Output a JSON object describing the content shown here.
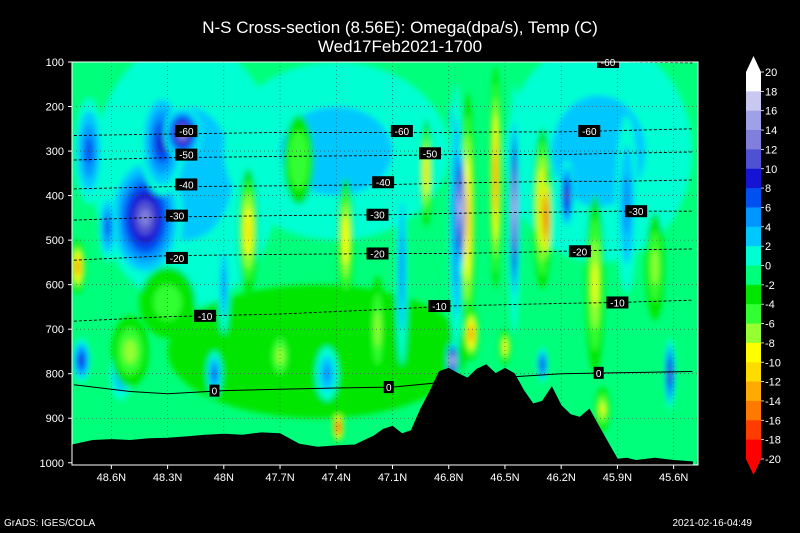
{
  "title_line1": "N-S Cross-section (8.56E): Omega(dpa/s), Temp (C)",
  "title_line2": "Wed17Feb2021-1700",
  "footer_left": "GrADS: IGES/COLA",
  "footer_right": "2021-02-16-04:49",
  "chart_data": {
    "type": "heatmap",
    "x_ticks": [
      "48.6N",
      "48.3N",
      "48N",
      "47.7N",
      "47.4N",
      "47.1N",
      "46.8N",
      "46.5N",
      "46.2N",
      "45.9N",
      "45.6N"
    ],
    "y_ticks": [
      100,
      200,
      300,
      400,
      500,
      600,
      700,
      800,
      900,
      1000
    ],
    "colorbar": {
      "labels": [
        20,
        18,
        16,
        14,
        12,
        10,
        8,
        6,
        4,
        2,
        0,
        -2,
        -4,
        -6,
        -8,
        -10,
        -12,
        -14,
        -16,
        -18,
        -20
      ],
      "colors": [
        "#ffffff",
        "#c8c8f0",
        "#a0a0e6",
        "#8080dc",
        "#5050d2",
        "#1414d2",
        "#0050f0",
        "#0096ff",
        "#00c8ff",
        "#00ffd2",
        "#00ff7a",
        "#00e600",
        "#32ff32",
        "#96ff32",
        "#ffff00",
        "#ffdc00",
        "#ffaa00",
        "#ff7800",
        "#ff3c00",
        "#ff0000"
      ]
    },
    "temperature_contours": [
      {
        "label": "-60",
        "x": [
          48.8,
          48.3,
          47.7,
          47.1,
          46.8,
          46.5,
          46.2,
          45.9,
          45.5
        ],
        "p": [
          265,
          262,
          258,
          258,
          258,
          257,
          257,
          254,
          250
        ]
      },
      {
        "label": "-50",
        "x": [
          48.8,
          48.3,
          47.7,
          47.1,
          46.8,
          46.5,
          46.2,
          45.9,
          45.5
        ],
        "p": [
          320,
          315,
          312,
          310,
          308,
          308,
          308,
          305,
          302
        ]
      },
      {
        "label": "-40",
        "x": [
          48.8,
          48.3,
          47.7,
          47.1,
          46.8,
          46.5,
          46.2,
          45.9,
          45.5
        ],
        "p": [
          385,
          380,
          378,
          375,
          372,
          370,
          368,
          368,
          365
        ]
      },
      {
        "label": "-30",
        "x": [
          48.8,
          48.3,
          47.7,
          47.1,
          46.8,
          46.5,
          46.2,
          45.9,
          45.5
        ],
        "p": [
          455,
          448,
          445,
          443,
          440,
          438,
          437,
          435,
          435
        ]
      },
      {
        "label": "-20",
        "x": [
          48.8,
          48.3,
          47.7,
          47.1,
          46.8,
          46.5,
          46.2,
          45.9,
          45.5
        ],
        "p": [
          545,
          535,
          532,
          530,
          530,
          528,
          525,
          522,
          520
        ]
      },
      {
        "label": "-10",
        "x": [
          48.8,
          48.3,
          47.7,
          47.1,
          46.8,
          46.5,
          46.2,
          45.9,
          45.5
        ],
        "p": [
          682,
          672,
          666,
          655,
          648,
          645,
          642,
          640,
          635
        ]
      },
      {
        "label": "0",
        "x": [
          48.8,
          48.5,
          48.3,
          48.0,
          47.7,
          47.4,
          47.1,
          46.8,
          46.5,
          46.2,
          45.9,
          45.5
        ],
        "p": [
          825,
          840,
          845,
          838,
          835,
          832,
          830,
          818,
          808,
          800,
          798,
          795
        ]
      },
      {
        "label": "-60",
        "x": [
          46.1,
          45.9,
          45.7,
          45.5
        ],
        "p": [
          100,
          100,
          101,
          102
        ]
      }
    ],
    "temperature_labels": [
      {
        "text": "-60",
        "x": 48.2,
        "p": 255
      },
      {
        "text": "-60",
        "x": 47.05,
        "p": 255
      },
      {
        "text": "-60",
        "x": 46.05,
        "p": 255
      },
      {
        "text": "-60",
        "x": 45.95,
        "p": 100
      },
      {
        "text": "-50",
        "x": 48.2,
        "p": 308
      },
      {
        "text": "-50",
        "x": 46.9,
        "p": 305
      },
      {
        "text": "-40",
        "x": 48.2,
        "p": 375
      },
      {
        "text": "-40",
        "x": 47.15,
        "p": 370
      },
      {
        "text": "-30",
        "x": 48.25,
        "p": 445
      },
      {
        "text": "-30",
        "x": 47.18,
        "p": 443
      },
      {
        "text": "-30",
        "x": 45.8,
        "p": 435
      },
      {
        "text": "-20",
        "x": 48.25,
        "p": 540
      },
      {
        "text": "-20",
        "x": 47.18,
        "p": 530
      },
      {
        "text": "-20",
        "x": 46.1,
        "p": 525
      },
      {
        "text": "-10",
        "x": 48.1,
        "p": 670
      },
      {
        "text": "-10",
        "x": 46.85,
        "p": 648
      },
      {
        "text": "-10",
        "x": 45.9,
        "p": 640
      },
      {
        "text": "0",
        "x": 48.05,
        "p": 838
      },
      {
        "text": "0",
        "x": 47.12,
        "p": 830
      },
      {
        "text": "0",
        "x": 46.0,
        "p": 798
      }
    ],
    "terrain": {
      "x": [
        48.81,
        48.7,
        48.6,
        48.5,
        48.4,
        48.3,
        48.2,
        48.1,
        48.0,
        47.9,
        47.8,
        47.7,
        47.6,
        47.5,
        47.4,
        47.3,
        47.2,
        47.15,
        47.1,
        47.05,
        47.0,
        46.95,
        46.9,
        46.85,
        46.8,
        46.75,
        46.7,
        46.65,
        46.6,
        46.55,
        46.5,
        46.45,
        46.4,
        46.35,
        46.3,
        46.25,
        46.2,
        46.15,
        46.1,
        46.05,
        46.0,
        45.95,
        45.9,
        45.85,
        45.8,
        45.7,
        45.6,
        45.5
      ],
      "p": [
        960,
        950,
        948,
        950,
        946,
        945,
        942,
        938,
        936,
        938,
        933,
        935,
        958,
        965,
        962,
        960,
        940,
        925,
        918,
        935,
        928,
        880,
        840,
        795,
        788,
        800,
        810,
        790,
        780,
        800,
        788,
        800,
        838,
        868,
        862,
        830,
        872,
        892,
        898,
        880,
        918,
        955,
        992,
        990,
        995,
        990,
        995,
        998
      ]
    },
    "omega_features": [
      {
        "x": 48.45,
        "p": 490,
        "rx": 0.09,
        "rp": 70,
        "v": 20
      },
      {
        "x": 48.42,
        "p": 450,
        "rx": 0.2,
        "rp": 140,
        "v": 13
      },
      {
        "x": 48.33,
        "p": 280,
        "rx": 0.12,
        "rp": 120,
        "v": 9
      },
      {
        "x": 48.22,
        "p": 260,
        "rx": 0.1,
        "rp": 60,
        "v": 15
      },
      {
        "x": 48.72,
        "p": 300,
        "rx": 0.08,
        "rp": 120,
        "v": 8
      },
      {
        "x": 48.62,
        "p": 470,
        "rx": 0.05,
        "rp": 80,
        "v": 8
      },
      {
        "x": 48.78,
        "p": 560,
        "rx": 0.04,
        "rp": 60,
        "v": -14
      },
      {
        "x": 48.76,
        "p": 770,
        "rx": 0.05,
        "rp": 50,
        "v": 9
      },
      {
        "x": 48.55,
        "p": 800,
        "rx": 0.06,
        "rp": 60,
        "v": 6
      },
      {
        "x": 48.5,
        "p": 750,
        "rx": 0.1,
        "rp": 80,
        "v": -6
      },
      {
        "x": 48.05,
        "p": 800,
        "rx": 0.04,
        "rp": 50,
        "v": 8
      },
      {
        "x": 48.0,
        "p": 600,
        "rx": 0.03,
        "rp": 110,
        "v": 6
      },
      {
        "x": 47.87,
        "p": 480,
        "rx": 0.03,
        "rp": 60,
        "v": -18
      },
      {
        "x": 47.87,
        "p": 480,
        "rx": 0.05,
        "rp": 140,
        "v": -10
      },
      {
        "x": 47.7,
        "p": 760,
        "rx": 0.06,
        "rp": 60,
        "v": -6
      },
      {
        "x": 47.45,
        "p": 800,
        "rx": 0.06,
        "rp": 60,
        "v": 6
      },
      {
        "x": 47.35,
        "p": 500,
        "rx": 0.04,
        "rp": 140,
        "v": -9
      },
      {
        "x": 47.39,
        "p": 920,
        "rx": 0.03,
        "rp": 35,
        "v": -20
      },
      {
        "x": 47.18,
        "p": 700,
        "rx": 0.04,
        "rp": 120,
        "v": -6
      },
      {
        "x": 47.05,
        "p": 560,
        "rx": 0.03,
        "rp": 220,
        "v": 6
      },
      {
        "x": 46.92,
        "p": 350,
        "rx": 0.03,
        "rp": 120,
        "v": -10
      },
      {
        "x": 46.78,
        "p": 230,
        "rx": 0.02,
        "rp": 40,
        "v": 12
      },
      {
        "x": 46.76,
        "p": 450,
        "rx": 0.04,
        "rp": 300,
        "v": 8
      },
      {
        "x": 46.7,
        "p": 450,
        "rx": 0.04,
        "rp": 280,
        "v": -12
      },
      {
        "x": 46.74,
        "p": 430,
        "rx": 0.027,
        "rp": 150,
        "v": 20
      },
      {
        "x": 46.55,
        "p": 360,
        "rx": 0.03,
        "rp": 250,
        "v": -14
      },
      {
        "x": 46.45,
        "p": 430,
        "rx": 0.035,
        "rp": 280,
        "v": 8
      },
      {
        "x": 46.45,
        "p": 430,
        "rx": 0.022,
        "rp": 220,
        "v": 20
      },
      {
        "x": 46.3,
        "p": 430,
        "rx": 0.05,
        "rp": 180,
        "v": -12
      },
      {
        "x": 46.28,
        "p": 450,
        "rx": 0.025,
        "rp": 110,
        "v": -20
      },
      {
        "x": 46.17,
        "p": 400,
        "rx": 0.04,
        "rp": 80,
        "v": 11
      },
      {
        "x": 46.78,
        "p": 770,
        "rx": 0.03,
        "rp": 40,
        "v": 20
      },
      {
        "x": 46.68,
        "p": 710,
        "rx": 0.04,
        "rp": 60,
        "v": -14
      },
      {
        "x": 46.5,
        "p": 740,
        "rx": 0.03,
        "rp": 40,
        "v": -10
      },
      {
        "x": 46.3,
        "p": 780,
        "rx": 0.03,
        "rp": 40,
        "v": 10
      },
      {
        "x": 46.02,
        "p": 600,
        "rx": 0.05,
        "rp": 200,
        "v": -8
      },
      {
        "x": 45.98,
        "p": 880,
        "rx": 0.04,
        "rp": 50,
        "v": -8
      },
      {
        "x": 45.85,
        "p": 420,
        "rx": 0.06,
        "rp": 200,
        "v": 6
      },
      {
        "x": 45.62,
        "p": 800,
        "rx": 0.03,
        "rp": 80,
        "v": 12
      },
      {
        "x": 45.7,
        "p": 560,
        "rx": 0.05,
        "rp": 120,
        "v": -6
      },
      {
        "x": 48.3,
        "p": 640,
        "rx": 0.15,
        "rp": 80,
        "v": -4
      },
      {
        "x": 47.6,
        "p": 320,
        "rx": 0.08,
        "rp": 100,
        "v": -5
      }
    ]
  }
}
